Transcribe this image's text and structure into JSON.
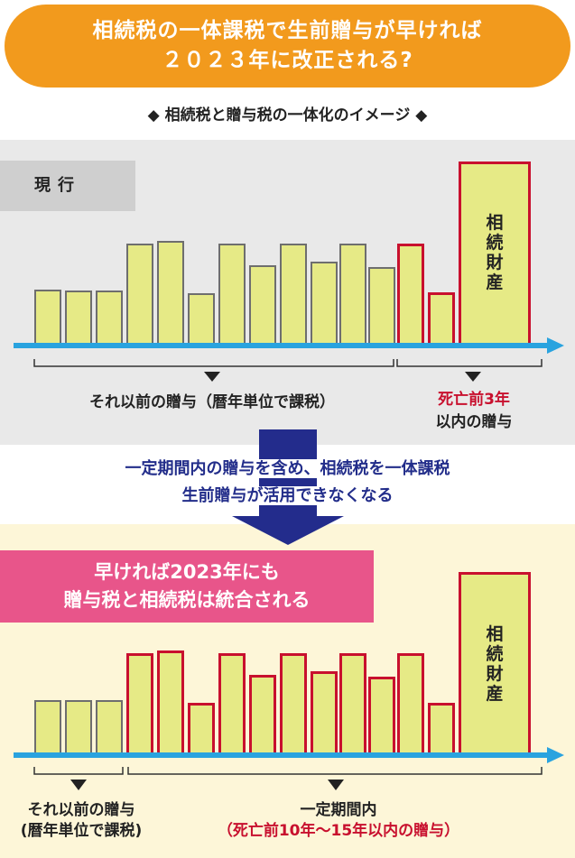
{
  "title": {
    "line1": "相続税の一体課税で生前贈与が早ければ",
    "line2": "２０２３年に改正される?"
  },
  "subtitle": "◆ 相続税と贈与税の一体化のイメージ ◆",
  "current": {
    "tag": "現行",
    "assets_label": "相続財産",
    "caption_left": "それ以前の贈与（暦年単位で課税）",
    "caption_right_red": "死亡前3年",
    "caption_right": "以内の贈与"
  },
  "middle": {
    "line1": "一定期間内の贈与を含め、相続税を一体課税",
    "line2": "生前贈与が活用できなくなる"
  },
  "future": {
    "tag_line1": "早ければ2023年にも",
    "tag_line2": "贈与税と相続税は統合される",
    "assets_label": "相続財産",
    "caption_left_line1": "それ以前の贈与",
    "caption_left_line2": "(暦年単位で課税)",
    "caption_right_line1": "一定期間内",
    "caption_right_line2": "（死亡前10年～15年以内の贈与）"
  },
  "colors": {
    "orange": "#f29a1d",
    "pink": "#e8558a",
    "bar_fill": "#e6ea86",
    "red": "#c8102e",
    "arrow_blue": "#29a3df",
    "navy": "#232c8c"
  }
}
